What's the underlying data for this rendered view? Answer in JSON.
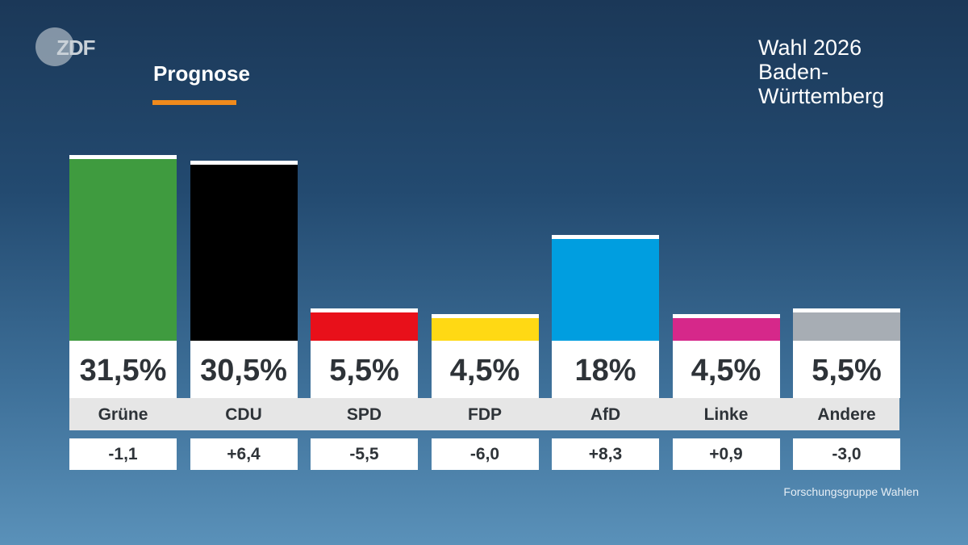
{
  "header": {
    "logo": "ZDF",
    "label": "Prognose",
    "title_lines": [
      "Wahl 2026",
      "Baden-",
      "Württemberg"
    ]
  },
  "source": "Forschungsgruppe Wahlen",
  "chart_data": {
    "type": "bar",
    "title": "Prognose",
    "categories": [
      "Grüne",
      "CDU",
      "SPD",
      "FDP",
      "AfD",
      "Linke",
      "Andere"
    ],
    "values": [
      31.5,
      30.5,
      5.5,
      4.5,
      18,
      4.5,
      5.5
    ],
    "value_labels": [
      "31,5%",
      "30,5%",
      "5,5%",
      "4,5%",
      "18%",
      "4,5%",
      "5,5%"
    ],
    "changes": [
      -1.1,
      6.4,
      -5.5,
      -6.0,
      8.3,
      0.9,
      -3.0
    ],
    "change_labels": [
      "-1,1",
      "+6,4",
      "-5,5",
      "-6,0",
      "+8,3",
      "+0,9",
      "-3,0"
    ],
    "colors": [
      "#3f9b3f",
      "#000000",
      "#e8101a",
      "#ffd914",
      "#009ee0",
      "#d6288a",
      "#a7adb4"
    ],
    "unit": "%"
  }
}
